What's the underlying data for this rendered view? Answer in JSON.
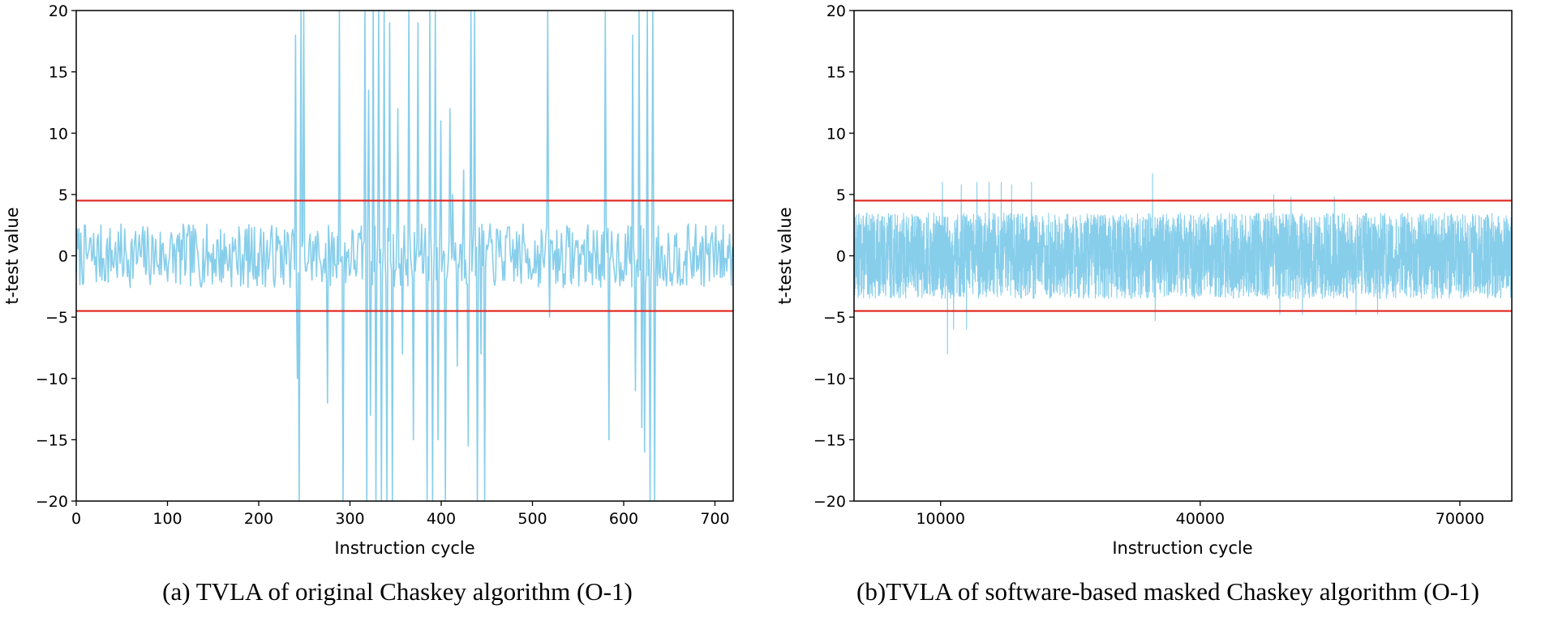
{
  "colors": {
    "signal": "#87ceeb",
    "threshold": "#e0241c",
    "axis": "#000000"
  },
  "chart_data": [
    {
      "type": "line",
      "title": "",
      "xlabel": "Instruction cycle",
      "ylabel": "t-test value",
      "xlim": [
        0,
        720
      ],
      "ylim": [
        -20,
        20
      ],
      "xticks": [
        0,
        100,
        200,
        300,
        400,
        500,
        600,
        700
      ],
      "yticks": [
        -20,
        -15,
        -10,
        -5,
        0,
        5,
        10,
        15,
        20
      ],
      "thresholds": [
        4.5,
        -4.5
      ],
      "series": [
        {
          "name": "t-test value",
          "n_points": 720,
          "baseline_amplitude": 2.6,
          "spikes": [
            {
              "x": 240,
              "y": 18
            },
            {
              "x": 242,
              "y": -10
            },
            {
              "x": 244,
              "y": -20
            },
            {
              "x": 246,
              "y": 20
            },
            {
              "x": 249,
              "y": 20
            },
            {
              "x": 275,
              "y": -12
            },
            {
              "x": 288,
              "y": 20
            },
            {
              "x": 292,
              "y": -20
            },
            {
              "x": 316,
              "y": 20
            },
            {
              "x": 318,
              "y": -20
            },
            {
              "x": 320,
              "y": 13.5
            },
            {
              "x": 322,
              "y": -13
            },
            {
              "x": 325,
              "y": 20
            },
            {
              "x": 328,
              "y": -20
            },
            {
              "x": 331,
              "y": 20
            },
            {
              "x": 334,
              "y": -20
            },
            {
              "x": 337,
              "y": 20
            },
            {
              "x": 340,
              "y": -20
            },
            {
              "x": 343,
              "y": 19
            },
            {
              "x": 346,
              "y": -20
            },
            {
              "x": 352,
              "y": 12
            },
            {
              "x": 357,
              "y": -8
            },
            {
              "x": 365,
              "y": 20
            },
            {
              "x": 370,
              "y": -15
            },
            {
              "x": 375,
              "y": 19
            },
            {
              "x": 385,
              "y": -20
            },
            {
              "x": 388,
              "y": 20
            },
            {
              "x": 391,
              "y": -20
            },
            {
              "x": 394,
              "y": 20
            },
            {
              "x": 397,
              "y": -15
            },
            {
              "x": 400,
              "y": 11
            },
            {
              "x": 405,
              "y": -20
            },
            {
              "x": 410,
              "y": 12
            },
            {
              "x": 413,
              "y": 5
            },
            {
              "x": 418,
              "y": -9
            },
            {
              "x": 425,
              "y": 7
            },
            {
              "x": 430,
              "y": -15.5
            },
            {
              "x": 433,
              "y": 20
            },
            {
              "x": 437,
              "y": 20
            },
            {
              "x": 440,
              "y": -20
            },
            {
              "x": 444,
              "y": -8
            },
            {
              "x": 448,
              "y": -20
            },
            {
              "x": 517,
              "y": 20
            },
            {
              "x": 519,
              "y": -5
            },
            {
              "x": 580,
              "y": 20
            },
            {
              "x": 584,
              "y": -15
            },
            {
              "x": 610,
              "y": 18
            },
            {
              "x": 613,
              "y": -11
            },
            {
              "x": 617,
              "y": 20
            },
            {
              "x": 620,
              "y": -14
            },
            {
              "x": 623,
              "y": -16
            },
            {
              "x": 626,
              "y": 20
            },
            {
              "x": 629,
              "y": -20
            },
            {
              "x": 632,
              "y": 20
            },
            {
              "x": 634,
              "y": -20
            }
          ]
        }
      ],
      "caption": "(a) TVLA of original Chaskey algorithm (O-1)"
    },
    {
      "type": "line",
      "title": "",
      "xlabel": "Instruction cycle",
      "ylabel": "t-test value",
      "xlim": [
        0,
        76000
      ],
      "ylim": [
        -20,
        20
      ],
      "xticks": [
        10000,
        40000,
        70000
      ],
      "yticks": [
        -20,
        -15,
        -10,
        -5,
        0,
        5,
        10,
        15,
        20
      ],
      "thresholds": [
        4.5,
        -4.5
      ],
      "series": [
        {
          "name": "t-test value",
          "n_points": 4000,
          "baseline_amplitude": 3.5,
          "spikes": [
            {
              "x": 10200,
              "y": 6
            },
            {
              "x": 10800,
              "y": -8
            },
            {
              "x": 11500,
              "y": -6
            },
            {
              "x": 12400,
              "y": 5.8
            },
            {
              "x": 13000,
              "y": -6
            },
            {
              "x": 14200,
              "y": 6
            },
            {
              "x": 15600,
              "y": 6
            },
            {
              "x": 17000,
              "y": 6
            },
            {
              "x": 18200,
              "y": 5.8
            },
            {
              "x": 20500,
              "y": 6
            },
            {
              "x": 34500,
              "y": 6.7
            },
            {
              "x": 34800,
              "y": -5.3
            },
            {
              "x": 48500,
              "y": 5
            },
            {
              "x": 49200,
              "y": -4.8
            },
            {
              "x": 50500,
              "y": 4.8
            },
            {
              "x": 51800,
              "y": -4.8
            },
            {
              "x": 55500,
              "y": 4.8
            },
            {
              "x": 58000,
              "y": -4.8
            },
            {
              "x": 60500,
              "y": -4.8
            }
          ]
        }
      ],
      "caption": "(b)TVLA of software-based masked Chaskey algorithm (O-1)"
    }
  ]
}
